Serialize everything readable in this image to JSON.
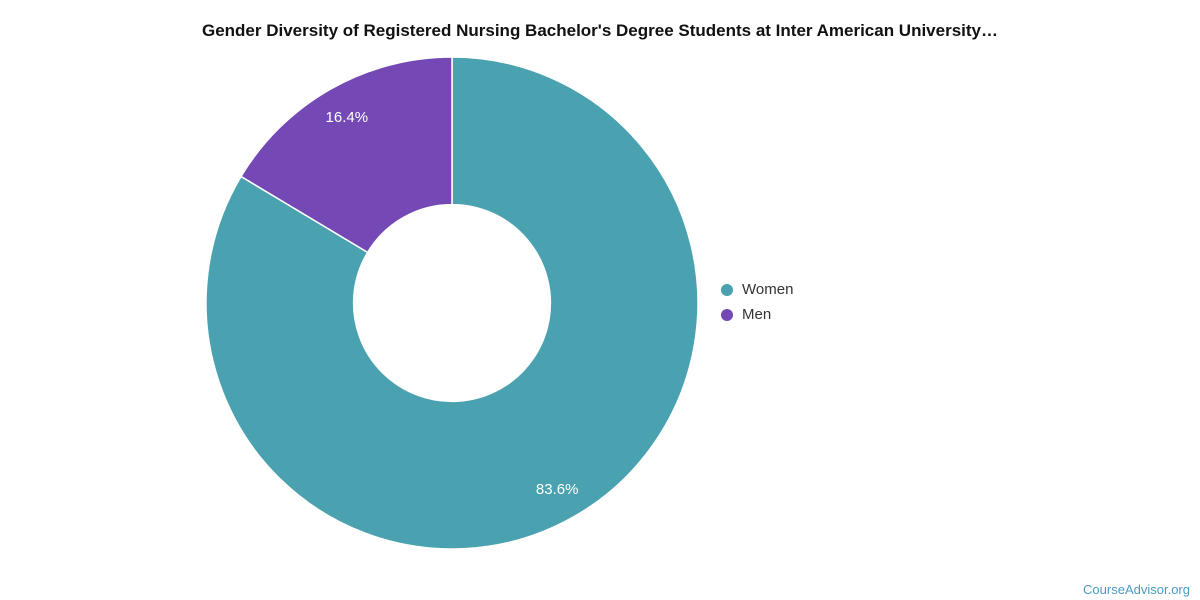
{
  "title": "Gender Diversity of Registered Nursing Bachelor's Degree Students at Inter American University…",
  "watermark": {
    "label": "CourseAdvisor.org",
    "color": "#4A9BC5"
  },
  "chart_data": {
    "type": "pie",
    "subtype": "donut",
    "title": "Gender Diversity of Registered Nursing Bachelor's Degree Students at Inter American University…",
    "categories": [
      "Women",
      "Men"
    ],
    "values": [
      83.6,
      16.4
    ],
    "value_labels": [
      "83.6%",
      "16.4%"
    ],
    "colors": [
      "#4AA2B0",
      "#7549B5"
    ],
    "start_angle_deg": 0,
    "direction": "clockwise",
    "inner_radius_ratio": 0.4,
    "slice_border_color": "#ffffff",
    "legend_position": "right",
    "background": "#ffffff"
  }
}
